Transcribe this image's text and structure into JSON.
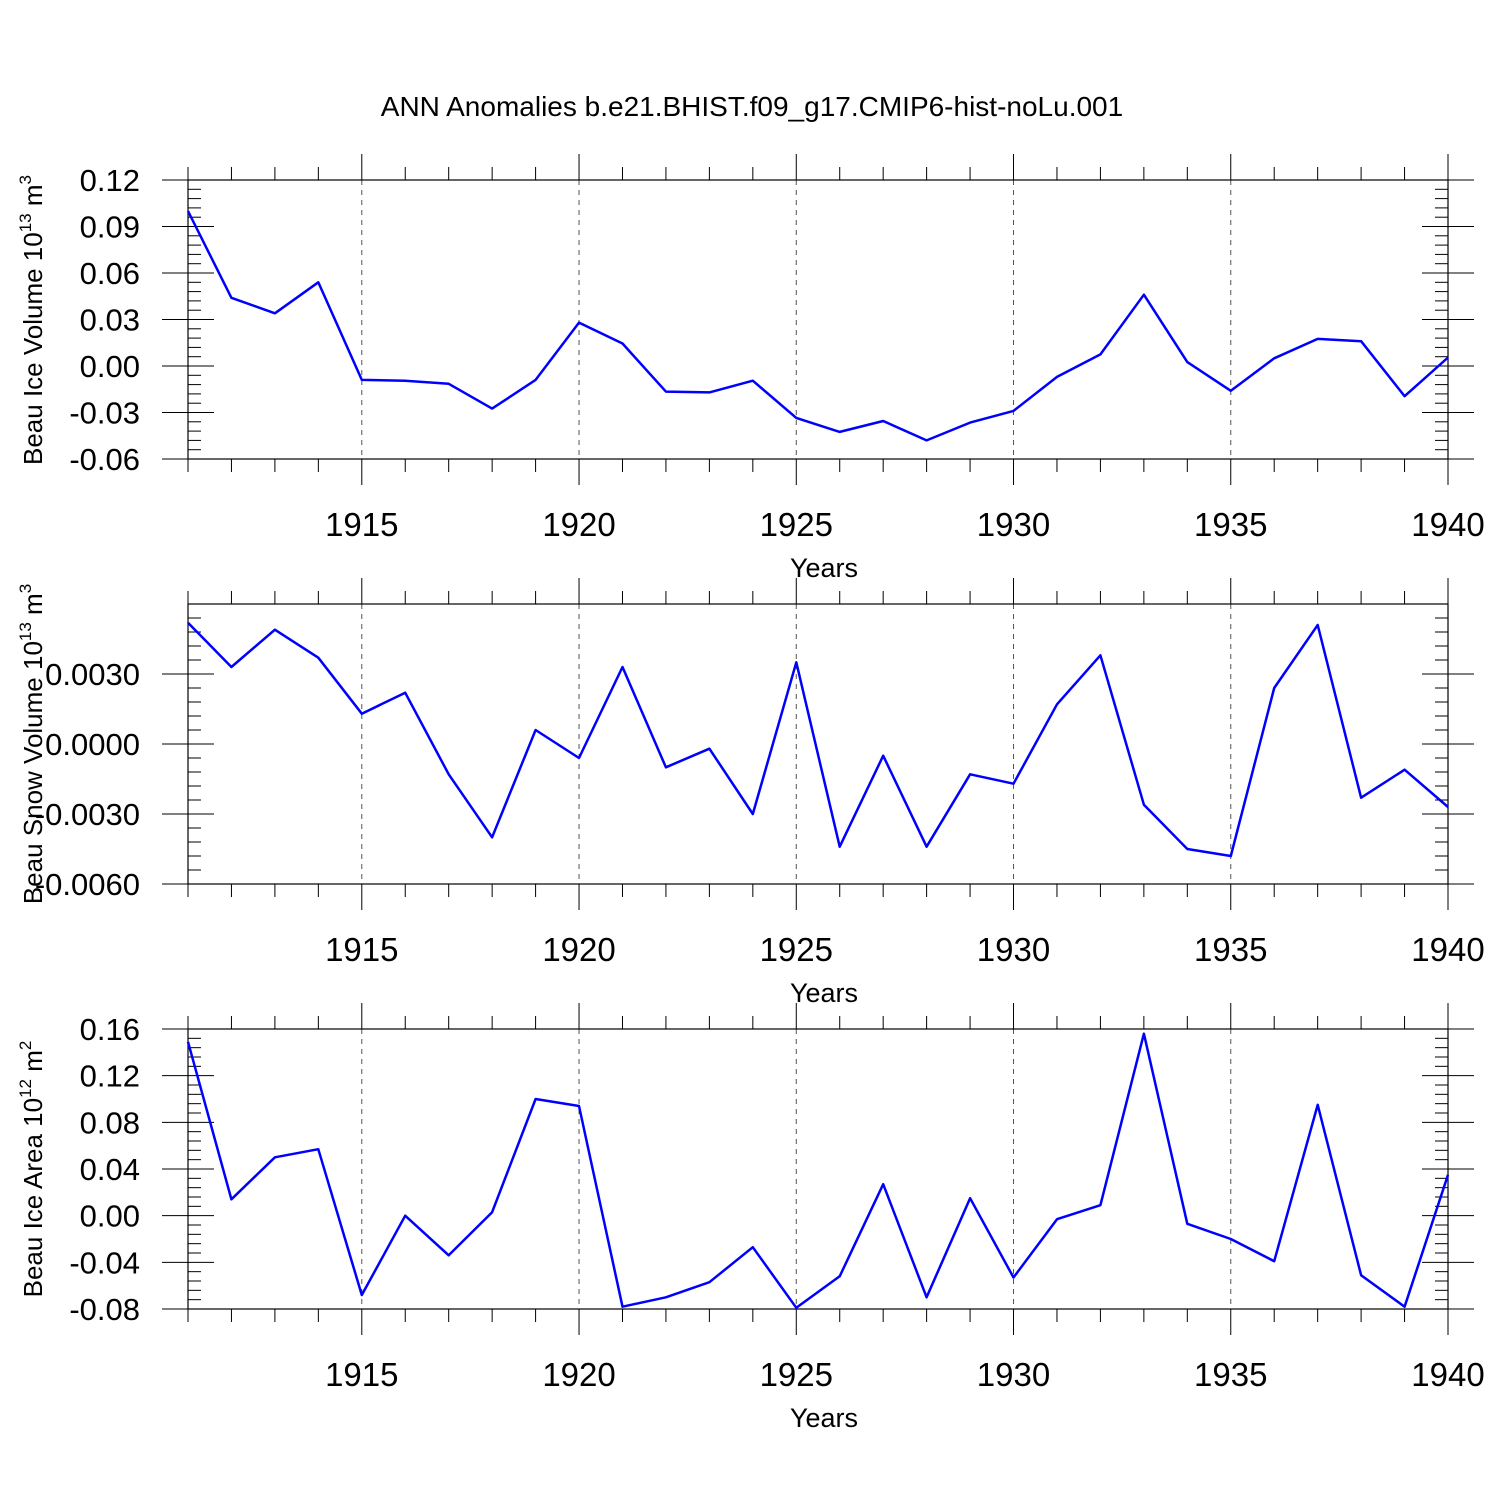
{
  "title": "ANN Anomalies b.e21.BHIST.f09_g17.CMIP6-hist-noLu.001",
  "line_color": "#0000ff",
  "chart_data": [
    {
      "type": "line",
      "name": "ice-volume",
      "ylabel_main": "Beau Ice Volume 10",
      "ylabel_sup": "13",
      "ylabel_unit": " m",
      "ylabel_unit_sup": "3",
      "xlabel": "Years",
      "xlim": [
        1911,
        1940
      ],
      "ylim": [
        -0.06,
        0.12
      ],
      "yticks": [
        -0.06,
        -0.03,
        0.0,
        0.03,
        0.06,
        0.09,
        0.12
      ],
      "ytick_labels": [
        "-0.06",
        "-0.03",
        "0.00",
        "0.03",
        "0.06",
        "0.09",
        "0.12"
      ],
      "xticks": [
        1915,
        1920,
        1925,
        1930,
        1935,
        1940
      ],
      "xtick_labels": [
        "1915",
        "1920",
        "1925",
        "1930",
        "1935",
        "1940"
      ],
      "x": [
        1911,
        1912,
        1913,
        1914,
        1915,
        1916,
        1917,
        1918,
        1919,
        1920,
        1921,
        1922,
        1923,
        1924,
        1925,
        1926,
        1927,
        1928,
        1929,
        1930,
        1931,
        1932,
        1933,
        1934,
        1935,
        1936,
        1937,
        1938,
        1939,
        1940
      ],
      "values": [
        0.1,
        0.044,
        0.034,
        0.054,
        -0.009,
        -0.0095,
        -0.0115,
        -0.0275,
        -0.009,
        0.028,
        0.0145,
        -0.0165,
        -0.017,
        -0.0095,
        -0.0335,
        -0.0425,
        -0.0355,
        -0.048,
        -0.0365,
        -0.029,
        -0.007,
        0.0075,
        0.046,
        0.0025,
        -0.016,
        0.005,
        0.0175,
        0.016,
        -0.0195,
        0.0055
      ]
    },
    {
      "type": "line",
      "name": "snow-volume",
      "ylabel_main": "Beau Snow Volume 10",
      "ylabel_sup": "13",
      "ylabel_unit": " m",
      "ylabel_unit_sup": "3",
      "xlabel": "Years",
      "xlim": [
        1911,
        1940
      ],
      "ylim": [
        -0.006,
        0.006
      ],
      "yticks": [
        -0.006,
        -0.003,
        0.0,
        0.003
      ],
      "ytick_labels": [
        "-0.0060",
        "-0.0030",
        "0.0000",
        "0.0030"
      ],
      "xticks": [
        1915,
        1920,
        1925,
        1930,
        1935,
        1940
      ],
      "xtick_labels": [
        "1915",
        "1920",
        "1925",
        "1930",
        "1935",
        "1940"
      ],
      "x": [
        1911,
        1912,
        1913,
        1914,
        1915,
        1916,
        1917,
        1918,
        1919,
        1920,
        1921,
        1922,
        1923,
        1924,
        1925,
        1926,
        1927,
        1928,
        1929,
        1930,
        1931,
        1932,
        1933,
        1934,
        1935,
        1936,
        1937,
        1938,
        1939,
        1940
      ],
      "values": [
        0.0052,
        0.0033,
        0.0049,
        0.0037,
        0.0013,
        0.0022,
        -0.0013,
        -0.004,
        0.0006,
        -0.0006,
        0.0033,
        -0.001,
        -0.0002,
        -0.003,
        0.0035,
        -0.0044,
        -0.0005,
        -0.0044,
        -0.0013,
        -0.0017,
        0.0017,
        0.0038,
        -0.0026,
        -0.0045,
        -0.0048,
        0.0024,
        0.0051,
        -0.0023,
        -0.0011,
        -0.0027
      ]
    },
    {
      "type": "line",
      "name": "ice-area",
      "ylabel_main": "Beau Ice Area 10",
      "ylabel_sup": "12",
      "ylabel_unit": " m",
      "ylabel_unit_sup": "2",
      "xlabel": "Years",
      "xlim": [
        1911,
        1940
      ],
      "ylim": [
        -0.08,
        0.16
      ],
      "yticks": [
        -0.08,
        -0.04,
        0.0,
        0.04,
        0.08,
        0.12,
        0.16
      ],
      "ytick_labels": [
        "-0.08",
        "-0.04",
        "0.00",
        "0.04",
        "0.08",
        "0.12",
        "0.16"
      ],
      "xticks": [
        1915,
        1920,
        1925,
        1930,
        1935,
        1940
      ],
      "xtick_labels": [
        "1915",
        "1920",
        "1925",
        "1930",
        "1935",
        "1940"
      ],
      "x": [
        1911,
        1912,
        1913,
        1914,
        1915,
        1916,
        1917,
        1918,
        1919,
        1920,
        1921,
        1922,
        1923,
        1924,
        1925,
        1926,
        1927,
        1928,
        1929,
        1930,
        1931,
        1932,
        1933,
        1934,
        1935,
        1936,
        1937,
        1938,
        1939,
        1940
      ],
      "values": [
        0.149,
        0.014,
        0.05,
        0.057,
        -0.068,
        0.0,
        -0.034,
        0.003,
        0.1,
        0.094,
        -0.078,
        -0.07,
        -0.057,
        -0.027,
        -0.079,
        -0.052,
        0.027,
        -0.07,
        0.015,
        -0.053,
        -0.003,
        0.009,
        0.156,
        -0.007,
        -0.02,
        -0.039,
        0.095,
        -0.051,
        -0.078,
        0.035
      ]
    }
  ]
}
